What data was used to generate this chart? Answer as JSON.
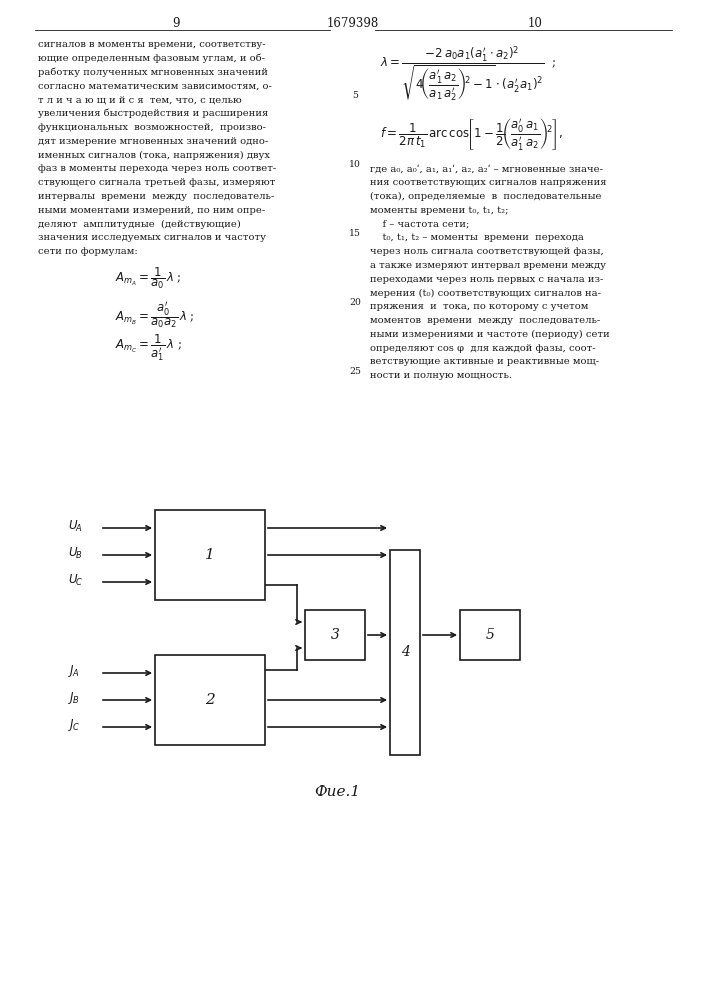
{
  "page_numbers_left": "9",
  "page_numbers_center": "1679398",
  "page_numbers_right": "10",
  "left_text": [
    "сигналов в моменты времени, соответству-",
    "ющие определенным фазовым углам, и об-",
    "работку полученных мгновенных значений",
    "согласно математическим зависимостям, о-",
    "т л и ч а ю щ и й с я  тем, что, с целью",
    "увеличения быстродействия и расширения",
    "функциональных  возможностей,  произво-",
    "дят измерение мгновенных значений одно-",
    "именных сигналов (тока, напряжения) двух",
    "фаз в моменты перехода через ноль соответ-",
    "ствующего сигнала третьей фазы, измеряют",
    "интервалы  времени  между  последователь-",
    "ными моментами измерений, по ним опре-",
    "деляют  амплитудные  (действующие)",
    "значения исследуемых сигналов и частоту",
    "сети по формулам:"
  ],
  "right_text": [
    "где a₀, a₀ʹ, a₁, a₁ʹ, a₂, a₂ʹ – мгновенные значе-",
    "ния соответствующих сигналов напряжения",
    "(тока), определяемые  в  последовательные",
    "моменты времени t₀, t₁, t₂;",
    "    f – частота сети;",
    "    t₀, t₁, t₂ – моменты  времени  перехода",
    "через ноль сигнала соответствующей фазы,",
    "а также измеряют интервал времени между",
    "переходами через ноль первых с начала из-",
    "мерения (t₀) соответствующих сигналов на-",
    "пряжения  и  тока, по которому с учетом",
    "моментов  времени  между  последователь-",
    "ными измерениями и частоте (периоду) сети",
    "определяют cos φ  для каждой фазы, соот-",
    "ветствующие активные и реактивные мощ-",
    "ности и полную мощность."
  ],
  "fig_caption": "Фие.1",
  "background_color": "#ffffff",
  "text_color": "#1a1a1a",
  "lw": 1.2,
  "font_size_body": 7.2,
  "font_size_header": 8.5,
  "font_size_formula": 8.5,
  "font_size_diagram": 11
}
